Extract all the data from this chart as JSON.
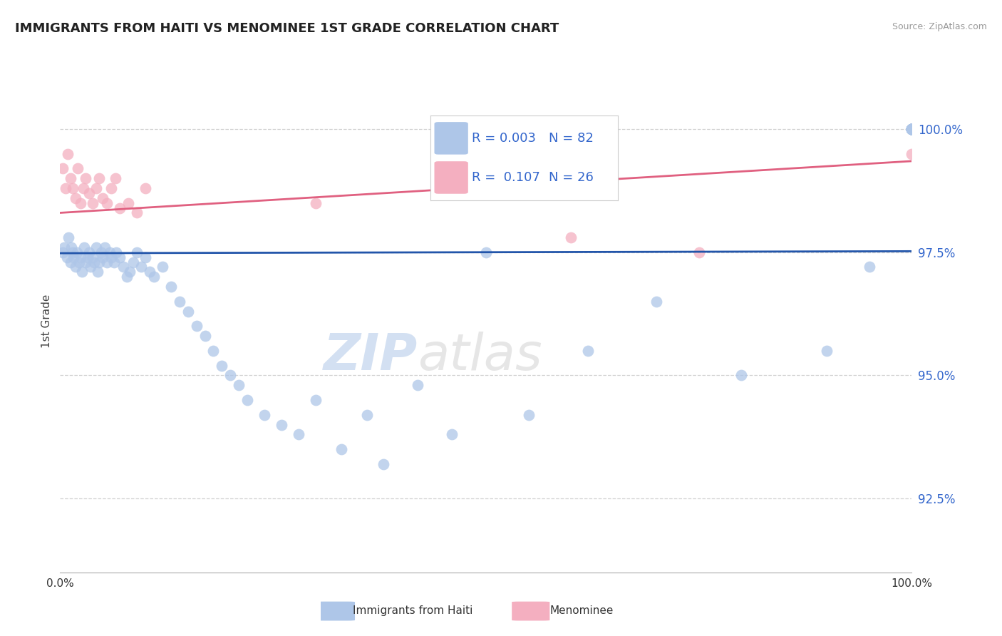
{
  "title": "IMMIGRANTS FROM HAITI VS MENOMINEE 1ST GRADE CORRELATION CHART",
  "source": "Source: ZipAtlas.com",
  "ylabel": "1st Grade",
  "xlim": [
    0,
    100
  ],
  "ylim": [
    91.0,
    101.2
  ],
  "ytick_positions": [
    92.5,
    95.0,
    97.5,
    100.0
  ],
  "R_blue": "0.003",
  "N_blue": "82",
  "R_pink": "0.107",
  "N_pink": "26",
  "blue_color": "#aec6e8",
  "pink_color": "#f4afc0",
  "blue_edge_color": "#aec6e8",
  "pink_edge_color": "#f4afc0",
  "blue_line_color": "#2255aa",
  "pink_line_color": "#e06080",
  "blue_trend": [
    97.48,
    97.52
  ],
  "pink_trend": [
    98.3,
    99.35
  ],
  "background_color": "#ffffff",
  "grid_color": "#cccccc",
  "watermark_text": "ZIPatlas",
  "watermark_color": "#d0d8e8",
  "blue_x": [
    0.3,
    0.5,
    0.8,
    1.0,
    1.2,
    1.3,
    1.5,
    1.6,
    1.8,
    2.0,
    2.2,
    2.4,
    2.6,
    2.8,
    3.0,
    3.2,
    3.4,
    3.6,
    3.8,
    4.0,
    4.2,
    4.4,
    4.6,
    4.8,
    5.0,
    5.2,
    5.5,
    5.8,
    6.0,
    6.3,
    6.6,
    7.0,
    7.4,
    7.8,
    8.2,
    8.6,
    9.0,
    9.5,
    10.0,
    10.5,
    11.0,
    12.0,
    13.0,
    14.0,
    15.0,
    16.0,
    17.0,
    18.0,
    19.0,
    20.0,
    21.0,
    22.0,
    24.0,
    26.0,
    28.0,
    30.0,
    33.0,
    36.0,
    38.0,
    42.0,
    46.0,
    50.0,
    55.0,
    62.0,
    70.0,
    80.0,
    90.0,
    95.0,
    100.0,
    100.0,
    100.0,
    100.0,
    100.0,
    100.0,
    100.0,
    100.0,
    100.0,
    100.0,
    100.0,
    100.0,
    100.0,
    100.0
  ],
  "blue_y": [
    97.5,
    97.6,
    97.4,
    97.8,
    97.3,
    97.6,
    97.5,
    97.4,
    97.2,
    97.5,
    97.3,
    97.4,
    97.1,
    97.6,
    97.3,
    97.4,
    97.5,
    97.2,
    97.4,
    97.3,
    97.6,
    97.1,
    97.3,
    97.5,
    97.4,
    97.6,
    97.3,
    97.5,
    97.4,
    97.3,
    97.5,
    97.4,
    97.2,
    97.0,
    97.1,
    97.3,
    97.5,
    97.2,
    97.4,
    97.1,
    97.0,
    97.2,
    96.8,
    96.5,
    96.3,
    96.0,
    95.8,
    95.5,
    95.2,
    95.0,
    94.8,
    94.5,
    94.2,
    94.0,
    93.8,
    94.5,
    93.5,
    94.2,
    93.2,
    94.8,
    93.8,
    97.5,
    94.2,
    95.5,
    96.5,
    95.0,
    95.5,
    97.2,
    100.0,
    100.0,
    100.0,
    100.0,
    100.0,
    100.0,
    100.0,
    100.0,
    100.0,
    100.0,
    100.0,
    100.0,
    100.0,
    100.0
  ],
  "pink_x": [
    0.3,
    0.6,
    0.9,
    1.2,
    1.5,
    1.8,
    2.1,
    2.4,
    2.7,
    3.0,
    3.4,
    3.8,
    4.2,
    4.6,
    5.0,
    5.5,
    6.0,
    6.5,
    7.0,
    8.0,
    9.0,
    10.0,
    30.0,
    60.0,
    75.0,
    100.0
  ],
  "pink_y": [
    99.2,
    98.8,
    99.5,
    99.0,
    98.8,
    98.6,
    99.2,
    98.5,
    98.8,
    99.0,
    98.7,
    98.5,
    98.8,
    99.0,
    98.6,
    98.5,
    98.8,
    99.0,
    98.4,
    98.5,
    98.3,
    98.8,
    98.5,
    97.8,
    97.5,
    99.5
  ]
}
